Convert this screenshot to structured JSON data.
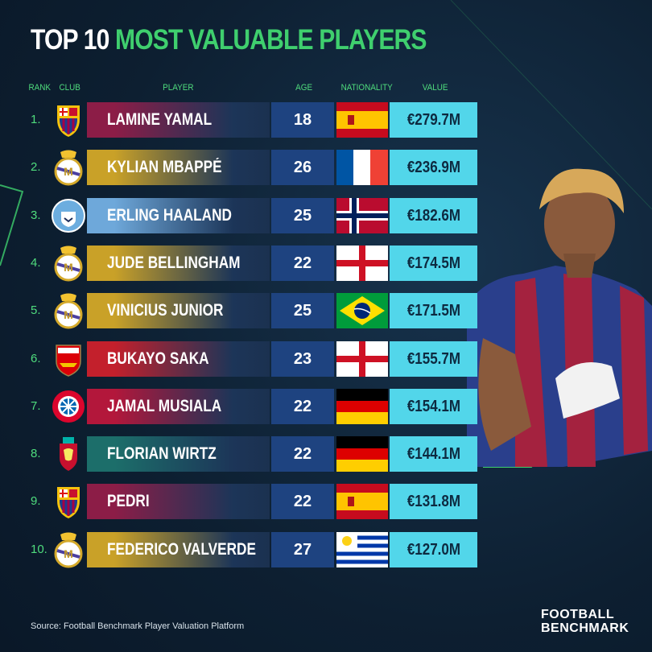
{
  "header": {
    "title_lead": "TOP 10",
    "title_highlight": "MOST VALUABLE PLAYERS"
  },
  "table": {
    "columns": [
      "RANK",
      "CLUB",
      "PLAYER",
      "AGE",
      "NATIONALITY",
      "VALUE"
    ],
    "rows": [
      [
        "1.",
        "LAMINE YAMAL",
        18,
        "€279.7M"
      ],
      [
        "2.",
        "KYLIAN MBAPPÉ",
        26,
        "€236.9M"
      ],
      [
        "3.",
        "ERLING HAALAND",
        25,
        "€182.6M"
      ],
      [
        "4.",
        "JUDE BELLINGHAM",
        22,
        "€174.5M"
      ],
      [
        "5.",
        "VINICIUS JUNIOR",
        25,
        "€171.5M"
      ],
      [
        "6.",
        "BUKAYO SAKA",
        23,
        "€155.7M"
      ],
      [
        "7.",
        "JAMAL MUSIALA",
        22,
        "€154.1M"
      ],
      [
        "8.",
        "FLORIAN WIRTZ",
        22,
        "€144.1M"
      ],
      [
        "9.",
        "PEDRI",
        22,
        "€131.8M"
      ],
      [
        "10.",
        "FEDERICO VALVERDE",
        27,
        "€127.0M"
      ]
    ]
  },
  "footer": {
    "source": "Source: Football Benchmark Player Valuation Platform",
    "brand": [
      "FOOTBALL",
      "BENCHMARK"
    ]
  }
}
